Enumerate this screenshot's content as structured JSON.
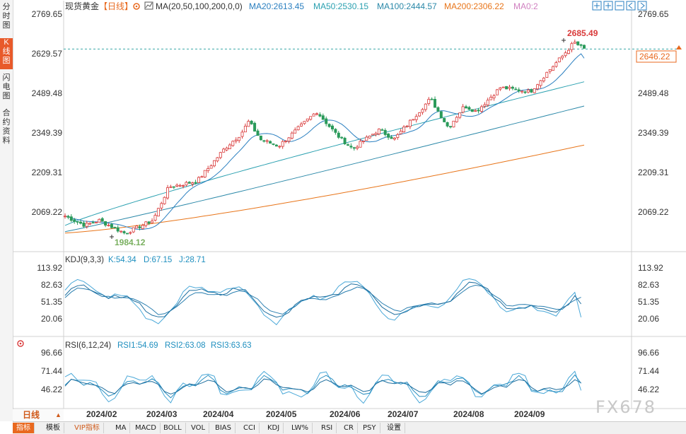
{
  "header": {
    "title": "现货黄金",
    "period": "【日线】",
    "ma_label": "MA(20,50,100,200,0,0)",
    "ma20": "MA20:2613.45",
    "ma50": "MA50:2530.15",
    "ma100": "MA100:2444.57",
    "ma200": "MA200:2306.22",
    "ma0": "MA0:2"
  },
  "side_tabs": [
    "分时图",
    "K线图",
    "闪电图",
    "合约资料"
  ],
  "price_axis": {
    "ticks": [
      "2769.65",
      "2629.57",
      "2489.48",
      "2349.39",
      "2209.31",
      "2069.22"
    ],
    "current_price": "2646.22"
  },
  "annotations": {
    "high": "2685.49",
    "low": "1984.12"
  },
  "kdj": {
    "label": "KDJ(9,3,3)",
    "k": "K:54.34",
    "d": "D:67.15",
    "j": "J:28.71",
    "ticks": [
      "113.92",
      "82.63",
      "51.35",
      "20.06"
    ]
  },
  "rsi": {
    "label": "RSI(6,12,24)",
    "r1": "RSI1:54.69",
    "r2": "RSI2:63.08",
    "r3": "RSI3:63.63",
    "ticks": [
      "96.66",
      "71.44",
      "46.22"
    ]
  },
  "x_axis": {
    "labels": [
      "2024/02",
      "2024/03",
      "2024/04",
      "2024/05",
      "2024/06",
      "2024/07",
      "2024/08",
      "2024/09"
    ]
  },
  "period_button": "日线",
  "bottom_tabs": [
    "指标",
    "模板",
    "VIP指标",
    "MA",
    "MACD",
    "BOLL",
    "VOL",
    "BIAS",
    "CCI",
    "KDJ",
    "LW%",
    "RSI",
    "CR",
    "PSY",
    "设置"
  ],
  "watermark": "FX678",
  "colors": {
    "up": "#d93a3a",
    "down": "#2a9a5a",
    "ma20": "#2a7fc0",
    "ma50": "#2aa0b0",
    "ma100": "#2a88a8",
    "ma200": "#e8751a",
    "accent": "#e8691f",
    "dash": "#3aa7a7"
  },
  "chart_data": {
    "type": "candlestick",
    "title": "现货黄金",
    "period": "日线",
    "y_ticks": [
      2769.65,
      2629.57,
      2489.48,
      2349.39,
      2209.31,
      2069.22
    ],
    "current_price": 2646.22,
    "high": 2685.49,
    "low": 1984.12,
    "close_path": [
      {
        "date": "2024-01-15",
        "close": 2055
      },
      {
        "date": "2024-01-25",
        "close": 2022
      },
      {
        "date": "2024-02-01",
        "close": 2040
      },
      {
        "date": "2024-02-14",
        "close": 1994
      },
      {
        "date": "2024-02-28",
        "close": 2040
      },
      {
        "date": "2024-03-07",
        "close": 2158
      },
      {
        "date": "2024-03-14",
        "close": 2168
      },
      {
        "date": "2024-03-21",
        "close": 2178
      },
      {
        "date": "2024-03-28",
        "close": 2235
      },
      {
        "date": "2024-04-04",
        "close": 2295
      },
      {
        "date": "2024-04-12",
        "close": 2345
      },
      {
        "date": "2024-04-16",
        "close": 2390
      },
      {
        "date": "2024-04-22",
        "close": 2325
      },
      {
        "date": "2024-05-01",
        "close": 2303
      },
      {
        "date": "2024-05-10",
        "close": 2360
      },
      {
        "date": "2024-05-20",
        "close": 2425
      },
      {
        "date": "2024-05-30",
        "close": 2343
      },
      {
        "date": "2024-06-07",
        "close": 2293
      },
      {
        "date": "2024-06-20",
        "close": 2360
      },
      {
        "date": "2024-06-28",
        "close": 2328
      },
      {
        "date": "2024-07-16",
        "close": 2470
      },
      {
        "date": "2024-07-25",
        "close": 2368
      },
      {
        "date": "2024-08-02",
        "close": 2445
      },
      {
        "date": "2024-08-08",
        "close": 2425
      },
      {
        "date": "2024-08-20",
        "close": 2510
      },
      {
        "date": "2024-09-04",
        "close": 2495
      },
      {
        "date": "2024-09-12",
        "close": 2560
      },
      {
        "date": "2024-09-20",
        "close": 2620
      },
      {
        "date": "2024-09-26",
        "close": 2670
      },
      {
        "date": "2024-10-01",
        "close": 2646
      }
    ],
    "ma_end_values": {
      "MA20": 2613.45,
      "MA50": 2530.15,
      "MA100": 2444.57,
      "MA200": 2306.22
    },
    "ma_start_values": {
      "MA20": 2030,
      "MA50": 2022,
      "MA100": 2000,
      "MA200": 1995
    },
    "kdj_end": {
      "K": 54.34,
      "D": 67.15,
      "J": 28.71
    },
    "rsi_end": {
      "RSI1": 54.69,
      "RSI2": 63.08,
      "RSI3": 63.63
    },
    "x_labels": [
      "2024/02",
      "2024/03",
      "2024/04",
      "2024/05",
      "2024/06",
      "2024/07",
      "2024/08",
      "2024/09"
    ]
  }
}
